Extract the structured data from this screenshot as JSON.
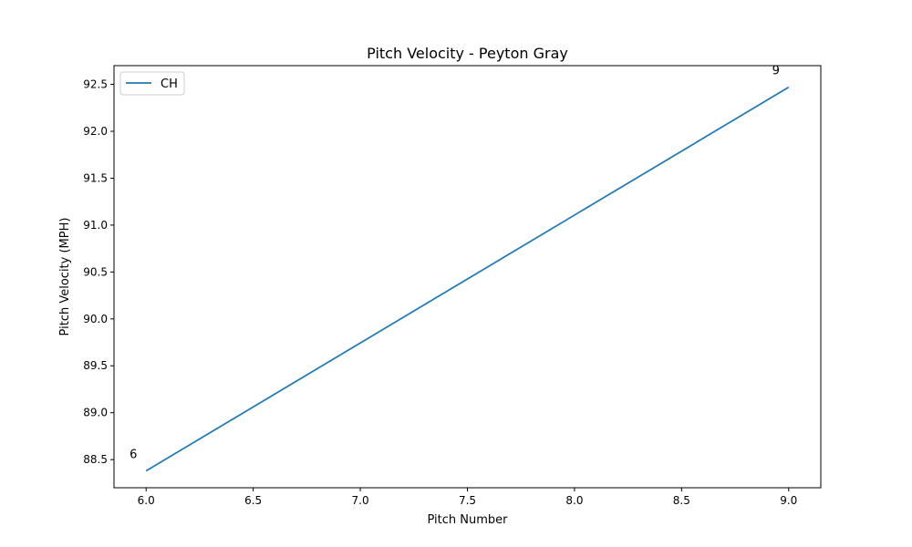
{
  "chart_data": {
    "type": "line",
    "title": "Pitch Velocity - Peyton Gray",
    "xlabel": "Pitch Number",
    "ylabel": "Pitch Velocity (MPH)",
    "xlim": [
      5.85,
      9.15
    ],
    "ylim": [
      88.2,
      92.7
    ],
    "xticks": [
      "6.0",
      "6.5",
      "7.0",
      "7.5",
      "8.0",
      "8.5",
      "9.0"
    ],
    "yticks": [
      "88.5",
      "89.0",
      "89.5",
      "90.0",
      "90.5",
      "91.0",
      "91.5",
      "92.0",
      "92.5"
    ],
    "grid": false,
    "legend_position": "top-left",
    "series": [
      {
        "name": "CH",
        "color": "#1f77b4",
        "x": [
          6,
          9
        ],
        "y": [
          88.38,
          92.47
        ]
      }
    ],
    "annotations": [
      {
        "text": "6",
        "x": 6,
        "y": 88.38
      },
      {
        "text": "9",
        "x": 9,
        "y": 92.47
      }
    ]
  }
}
